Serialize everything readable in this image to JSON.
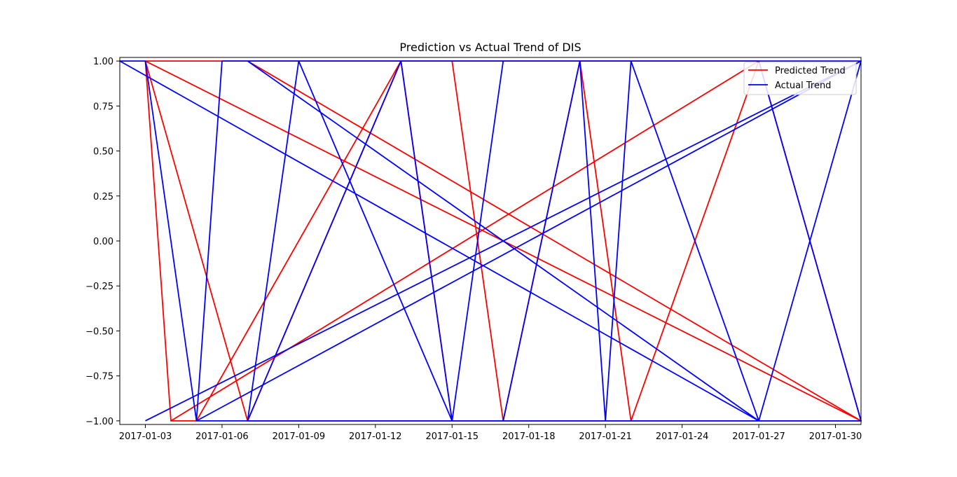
{
  "chart_data": {
    "type": "line",
    "title": "Prediction vs Actual Trend of DIS",
    "xlabel": "",
    "ylabel": "",
    "x_is_date": true,
    "xlim": [
      "2017-01-02",
      "2017-01-31"
    ],
    "ylim": [
      -1.02,
      1.02
    ],
    "x_ticks": [
      "2017-01-03",
      "2017-01-06",
      "2017-01-09",
      "2017-01-12",
      "2017-01-15",
      "2017-01-18",
      "2017-01-21",
      "2017-01-24",
      "2017-01-27",
      "2017-01-30"
    ],
    "y_ticks": [
      1.0,
      0.75,
      0.5,
      0.25,
      0.0,
      -0.25,
      -0.5,
      -0.75,
      -1.0
    ],
    "y_tick_labels": [
      "1.00",
      "0.75",
      "0.50",
      "0.25",
      "0.00",
      "−0.25",
      "−0.50",
      "−0.75",
      "−1.00"
    ],
    "legend_position": "top-right",
    "grid": false,
    "series": [
      {
        "name": "Predicted Trend",
        "color": "#ff0000",
        "x": [
          "2017-01-07",
          "2017-01-31",
          "2017-01-03",
          "2017-01-27",
          "2017-01-04",
          "2017-01-05",
          "2017-01-13",
          "2017-01-15",
          "2017-01-17",
          "2017-01-20",
          "2017-01-22",
          "2017-01-27",
          "2017-01-31",
          "2017-01-07",
          "2017-01-13",
          "2017-01-15",
          "2017-01-17",
          "2017-01-20",
          "2017-01-22",
          "2017-01-07",
          "2017-01-03",
          "2017-01-04"
        ],
        "y": [
          1,
          -1,
          1,
          1,
          -1,
          -1,
          1,
          1,
          -1,
          1,
          -1,
          1,
          -1,
          -1,
          1,
          -1,
          -1,
          1,
          -1,
          -1,
          1,
          -1
        ]
      },
      {
        "name": "Actual Trend",
        "color": "#0000ff",
        "x": [
          "2017-01-03",
          "2017-01-31",
          "2017-01-07",
          "2017-01-27",
          "2017-01-02",
          "2017-01-03",
          "2017-01-05",
          "2017-01-06",
          "2017-01-07",
          "2017-01-09",
          "2017-01-15",
          "2017-01-17",
          "2017-01-20",
          "2017-01-21",
          "2017-01-22",
          "2017-01-27",
          "2017-01-31",
          "2017-01-07",
          "2017-01-09",
          "2017-01-13",
          "2017-01-15",
          "2017-01-17",
          "2017-01-20",
          "2017-01-22",
          "2017-01-27",
          "2017-01-31",
          "2017-01-05",
          "2017-01-07",
          "2017-01-13",
          "2017-01-15",
          "2017-01-27"
        ],
        "y": [
          -1,
          1,
          1,
          -1,
          1,
          1,
          -1,
          1,
          1,
          1,
          -1,
          1,
          1,
          -1,
          1,
          1,
          -1,
          -1,
          1,
          1,
          -1,
          -1,
          1,
          1,
          -1,
          1,
          -1,
          -1,
          1,
          -1,
          -1
        ]
      }
    ]
  }
}
